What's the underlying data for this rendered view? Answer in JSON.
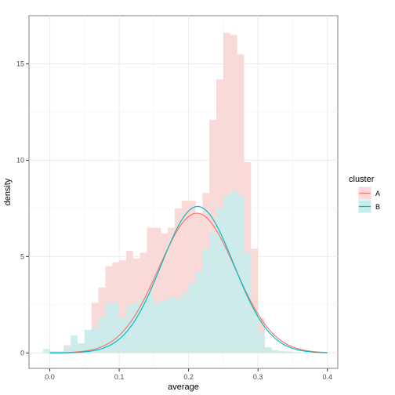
{
  "chart_data": {
    "type": "bar",
    "x_axis": {
      "label": "average",
      "min": -0.03,
      "max": 0.415,
      "ticks": [
        0.0,
        0.1,
        0.2,
        0.3,
        0.4
      ],
      "tick_labels": [
        "0.0",
        "0.1",
        "0.2",
        "0.3",
        "0.4"
      ]
    },
    "y_axis": {
      "label": "density",
      "min": -0.8,
      "max": 17.5,
      "ticks": [
        0,
        5,
        10,
        15
      ],
      "tick_labels": [
        "0",
        "5",
        "10",
        "15"
      ]
    },
    "grid": true,
    "bin_width": 0.01,
    "legend": {
      "title": "cluster",
      "position": "right",
      "items": [
        {
          "label": "A",
          "line_color": "#F8766D",
          "fill_color": "#FADAD8"
        },
        {
          "label": "B",
          "line_color": "#00BFC4",
          "fill_color": "#C6ECEC"
        }
      ]
    },
    "series": [
      {
        "name": "A",
        "histogram": {
          "bin_starts": [
            -0.01,
            0.0,
            0.01,
            0.02,
            0.03,
            0.04,
            0.05,
            0.06,
            0.07,
            0.08,
            0.09,
            0.1,
            0.11,
            0.12,
            0.13,
            0.14,
            0.15,
            0.16,
            0.17,
            0.18,
            0.19,
            0.2,
            0.21,
            0.22,
            0.23,
            0.24,
            0.25,
            0.26,
            0.27,
            0.28,
            0.29,
            0.3,
            0.31,
            0.32,
            0.33,
            0.34,
            0.35,
            0.36,
            0.37,
            0.38,
            0.39,
            0.4
          ],
          "values": [
            0.0,
            0.0,
            0.0,
            0.4,
            0.6,
            0.5,
            1.0,
            2.6,
            3.4,
            4.5,
            4.7,
            4.8,
            5.3,
            4.9,
            5.2,
            6.5,
            6.5,
            6.2,
            6.5,
            7.5,
            7.9,
            7.9,
            7.2,
            8.3,
            12.1,
            14.2,
            16.6,
            16.5,
            15.5,
            9.9,
            5.4,
            1.8,
            0.2,
            0.1,
            0.05,
            0.02,
            0.0,
            0.0,
            0.0,
            0.0,
            0.0,
            0.0
          ]
        },
        "density_curve": {
          "mean": 0.212,
          "sd": 0.055,
          "peak": 7.25,
          "x_range": [
            0.0,
            0.4
          ]
        }
      },
      {
        "name": "B",
        "histogram": {
          "bin_starts": [
            -0.01,
            0.0,
            0.01,
            0.02,
            0.03,
            0.04,
            0.05,
            0.06,
            0.07,
            0.08,
            0.09,
            0.1,
            0.11,
            0.12,
            0.13,
            0.14,
            0.15,
            0.16,
            0.17,
            0.18,
            0.19,
            0.2,
            0.21,
            0.22,
            0.23,
            0.24,
            0.25,
            0.26,
            0.27,
            0.28,
            0.29,
            0.3,
            0.31,
            0.32,
            0.33,
            0.34,
            0.35,
            0.36,
            0.37,
            0.38,
            0.39,
            0.4
          ],
          "values": [
            0.2,
            0.1,
            0.1,
            0.3,
            0.9,
            0.5,
            1.2,
            1.3,
            1.8,
            2.6,
            2.6,
            1.8,
            2.5,
            2.6,
            2.8,
            3.0,
            2.6,
            2.7,
            2.9,
            2.8,
            3.1,
            3.6,
            4.2,
            5.4,
            6.2,
            7.5,
            8.2,
            8.4,
            8.2,
            5.2,
            2.2,
            1.1,
            0.3,
            0.15,
            0.1,
            0.08,
            0.05,
            0.03,
            0.0,
            0.0,
            0.0,
            0.0
          ]
        },
        "density_curve": {
          "mean": 0.213,
          "sd": 0.052,
          "peak": 7.6,
          "x_range": [
            0.0,
            0.4
          ]
        }
      }
    ]
  }
}
